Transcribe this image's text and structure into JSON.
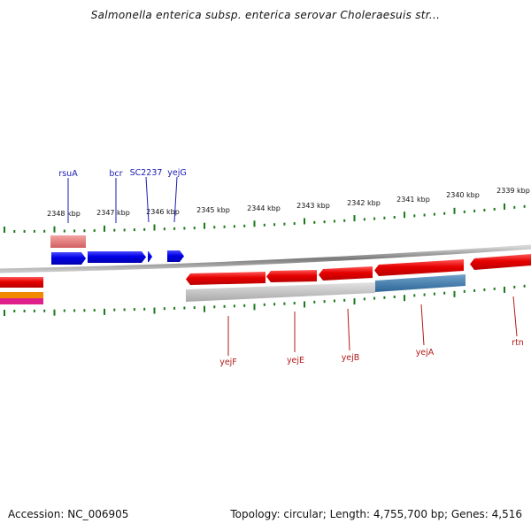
{
  "title": "Salmonella enterica subsp. enterica serovar Choleraesuis str...",
  "footer": {
    "accession": "Accession: NC_006905",
    "summary": "Topology: circular; Length: 4,755,700 bp; Genes: 4,516"
  },
  "scale": {
    "unit": "kbp",
    "labels": [
      "2348 kbp",
      "2347 kbp",
      "2346 kbp",
      "2345 kbp",
      "2344 kbp",
      "2343 kbp",
      "2342 kbp",
      "2341 kbp",
      "2340 kbp",
      "2339 kbp"
    ]
  },
  "genes_forward": [
    {
      "name": "rsuA",
      "color": "#0000e6"
    },
    {
      "name": "bcr",
      "color": "#0000e6"
    },
    {
      "name": "SC2237",
      "color": "#0000e6"
    },
    {
      "name": "yejG",
      "color": "#0000e6"
    }
  ],
  "genes_reverse": [
    {
      "name": "yejF",
      "color": "#e60000"
    },
    {
      "name": "yejE",
      "color": "#e60000"
    },
    {
      "name": "yejB",
      "color": "#e60000"
    },
    {
      "name": "yejA",
      "color": "#e60000"
    },
    {
      "name": "rtn",
      "color": "#e60000"
    }
  ],
  "colors": {
    "forward_gene": "#0000e6",
    "reverse_gene": "#e60000",
    "backbone": "#8c8c8c",
    "ticks": "#1a7a1a",
    "forward_label": "#1a1ab4",
    "reverse_label": "#b41a1a",
    "feature_salmon": "#e07070",
    "feature_steelblue": "#3a76aa",
    "feature_gray": "#bdbdbd",
    "feature_orange": "#f28a00",
    "feature_magenta": "#e0208a"
  }
}
